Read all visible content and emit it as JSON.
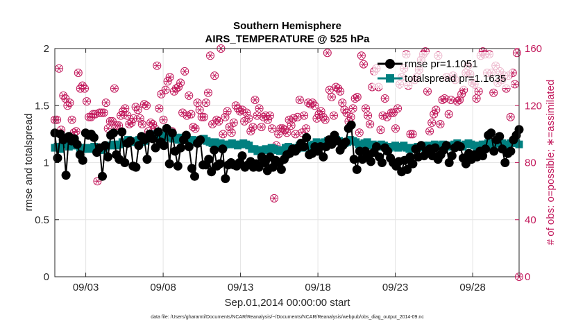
{
  "chart_data": {
    "type": "line",
    "title": "Southern Hemisphere",
    "subtitle": "AIRS_TEMPERATURE @ 525 hPa",
    "xlabel": "Sep.01,2014 00:00:00 start",
    "ylabel": "rmse and totalspread",
    "ylabel_right": "# of obs: o=possible; ∗=assimilated",
    "footnote": "data file: /Users/gharamti/Documents/NCAR/Reanalysis/~/Documents/NCAR/Reanalysis/webpub/obs_diag_output_2014-09.nc",
    "xlim": [
      1.0,
      31.0
    ],
    "ylim": [
      0,
      2
    ],
    "ylim_right": [
      0,
      160
    ],
    "xticks": [
      3,
      8,
      13,
      18,
      23,
      28
    ],
    "xtick_labels": [
      "09/03",
      "09/08",
      "09/13",
      "09/18",
      "09/23",
      "09/28"
    ],
    "yticks": [
      0,
      0.5,
      1,
      1.5,
      2
    ],
    "ytick_labels": [
      "0",
      "0.5",
      "1",
      "1.5",
      "2"
    ],
    "yticks_right": [
      0,
      40,
      80,
      120,
      160
    ],
    "ytick_labels_right": [
      "0",
      "40",
      "80",
      "120",
      "160"
    ],
    "grid": true,
    "legend_position": "top-right",
    "colors": {
      "rmse": "#000000",
      "spread": "#008080",
      "obs": "#c2185b",
      "grid": "#e4e4e4"
    },
    "series": [
      {
        "name": "rmse",
        "legend_label": "rmse pr=1.1051",
        "values": [
          1.26,
          1.04,
          1.25,
          1.2,
          0.89,
          1.23,
          1.19,
          1.21,
          1.16,
          1.07,
          1.02,
          1.26,
          1.24,
          1.25,
          1.22,
          1.09,
          1.13,
          0.88,
          1.15,
          1.05,
          1.24,
          1.26,
          1.07,
          1.03,
          1.27,
          1.0,
          1.17,
          1.19,
          0.97,
          0.96,
          1.15,
          1.23,
          1.2,
          1.03,
          1.25,
          1.21,
          1.13,
          1.27,
          1.18,
          1.15,
          1.3,
          0.99,
          1.26,
          1.1,
          0.97,
          1.13,
          1.2,
          1.24,
          1.14,
          0.95,
          0.88,
          1.17,
          1.2,
          0.98,
          0.98,
          1.03,
          0.92,
          1.11,
          0.97,
          0.99,
          1.12,
          0.86,
          0.98,
          1.0,
          0.98,
          0.97,
          1.0,
          1.06,
          0.96,
          0.98,
          1.01,
          0.96,
          0.99,
          0.96,
          1.05,
          1.0,
          0.93,
          1.05,
          0.96,
          1.02,
          1.0,
          0.94,
          1.03,
          1.07,
          1.08,
          1.12,
          1.1,
          1.13,
          1.17,
          1.14,
          1.22,
          1.07,
          1.08,
          1.14,
          1.1,
          1.14,
          1.05,
          1.14,
          1.2,
          1.16,
          1.24,
          1.19,
          1.11,
          1.15,
          1.18,
          1.3,
          1.33,
          1.03,
          0.94,
          1.1,
          1.03,
          1.1,
          1.06,
          1.01,
          1.09,
          1.14,
          1.05,
          1.0,
          1.13,
          1.1,
          1.04,
          1.0,
          0.97,
          1.01,
          0.92,
          1.02,
          0.94,
          1.05,
          0.99,
          1.12,
          1.05,
          1.15,
          1.06,
          1.1,
          1.12,
          1.06,
          1.13,
          1.03,
          1.07,
          1.11,
          1.15,
          1.0,
          1.06,
          1.13,
          1.15,
          1.14,
          1.04,
          0.99,
          1.08,
          1.03,
          1.07,
          1.05,
          1.1,
          1.06,
          1.12,
          1.24,
          1.26,
          1.1,
          1.2,
          1.23,
          1.12,
          1.0,
          1.08,
          1.1,
          1.2,
          1.24,
          1.29
        ]
      },
      {
        "name": "totalspread",
        "legend_label": "totalspread pr=1.1635",
        "values": [
          1.13,
          1.14,
          1.12,
          1.16,
          1.16,
          1.14,
          1.15,
          1.15,
          1.15,
          1.13,
          1.12,
          1.13,
          1.12,
          1.13,
          1.14,
          1.12,
          1.11,
          1.12,
          1.14,
          1.15,
          1.15,
          1.16,
          1.15,
          1.16,
          1.18,
          1.17,
          1.2,
          1.19,
          1.18,
          1.19,
          1.2,
          1.18,
          1.19,
          1.22,
          1.25,
          1.24,
          1.23,
          1.25,
          1.24,
          1.22,
          1.23,
          1.22,
          1.21,
          1.22,
          1.2,
          1.22,
          1.21,
          1.2,
          1.19,
          1.2,
          1.18,
          1.19,
          1.2,
          1.21,
          1.19,
          1.18,
          1.17,
          1.18,
          1.16,
          1.17,
          1.15,
          1.16,
          1.16,
          1.17,
          1.16,
          1.15,
          1.16,
          1.17,
          1.16,
          1.15,
          1.12,
          1.12,
          1.1,
          1.11,
          1.11,
          1.12,
          1.11,
          1.13,
          1.12,
          1.11,
          1.1,
          1.11,
          1.13,
          1.14,
          1.12,
          1.13,
          1.12,
          1.15,
          1.13,
          1.14,
          1.14,
          1.15,
          1.16,
          1.18,
          1.17,
          1.17,
          1.18,
          1.19,
          1.2,
          1.19,
          1.2,
          1.19,
          1.18,
          1.17,
          1.18,
          1.2,
          1.19,
          1.18,
          1.16,
          1.15,
          1.17,
          1.18,
          1.15,
          1.16,
          1.15,
          1.14,
          1.16,
          1.15,
          1.14,
          1.13,
          1.14,
          1.15,
          1.13,
          1.14,
          1.15,
          1.13,
          1.12,
          1.13,
          1.12,
          1.14,
          1.13,
          1.15,
          1.14,
          1.15,
          1.14,
          1.16,
          1.15,
          1.14,
          1.16,
          1.15,
          1.14,
          1.15,
          1.16,
          1.17,
          1.15,
          1.14,
          1.16,
          1.17,
          1.16,
          1.15,
          1.14,
          1.15,
          1.16,
          1.16,
          1.17,
          1.16,
          1.15,
          1.17,
          1.18,
          1.17,
          1.15,
          1.16,
          1.17,
          1.18,
          1.17,
          1.16
        ]
      },
      {
        "name": "obs_possible",
        "axis": "right",
        "values": [
          110,
          110,
          146,
          103,
          127,
          125,
          120,
          122,
          110,
          101,
          102,
          143,
          132,
          134,
          132,
          123,
          112,
          112,
          114,
          114,
          67,
          115,
          115,
          115,
          122,
          104,
          109,
          109,
          132,
          106,
          106,
          113,
          116,
          118,
          113,
          107,
          108,
          111,
          119,
          117,
          111,
          107,
          121,
          120,
          102,
          108,
          107,
          104,
          148,
          118,
          128,
          110,
          131,
          137,
          140,
          102,
          130,
          132,
          133,
          136,
          115,
          144,
          113,
          127,
          114,
          105,
          104,
          122,
          117,
          112,
          112,
          122,
          129,
          155,
          107,
          141,
          110,
          109,
          160,
          100,
          112,
          116,
          105,
          101,
          108,
          120,
          118,
          116,
          117,
          109,
          115,
          111,
          102,
          105,
          124,
          113,
          118,
          105,
          112,
          113,
          110,
          113,
          104,
          55,
          92,
          100,
          104,
          104,
          103,
          101,
          110,
          106,
          111,
          100,
          112,
          124,
          101,
          113,
          104,
          122,
          121,
          122,
          120,
          111,
          114,
          116,
          112,
          110,
          157,
          131,
          126,
          113,
          133,
          132,
          130,
          122,
          117,
          115,
          109,
          112,
          118,
          125,
          126,
          101,
          155,
          149,
          118,
          113,
          107,
          133,
          144,
          146,
          133,
          103,
          113,
          125,
          112,
          149,
          115,
          115,
          104,
          118,
          135,
          140,
          146,
          156,
          134,
          100,
          100,
          138,
          140,
          145,
          152,
          156,
          158,
          130,
          102,
          108,
          114,
          117,
          155,
          107,
          124,
          125,
          140,
          114,
          124,
          141,
          138,
          123,
          124,
          128,
          131,
          143,
          148,
          142,
          136,
          135,
          125,
          130,
          155,
          158,
          156,
          143,
          156,
          143,
          129,
          148,
          136,
          144,
          138,
          141,
          132,
          141,
          112,
          143,
          135,
          157,
          0
        ]
      }
    ]
  }
}
